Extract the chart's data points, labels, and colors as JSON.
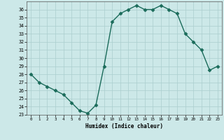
{
  "x": [
    0,
    1,
    2,
    3,
    4,
    5,
    6,
    7,
    8,
    9,
    10,
    11,
    12,
    13,
    14,
    15,
    16,
    17,
    18,
    19,
    20,
    21,
    22,
    23
  ],
  "y": [
    28,
    27,
    26.5,
    26,
    25.5,
    24.5,
    23.5,
    23.2,
    24.2,
    29,
    34.5,
    35.5,
    36,
    36.5,
    36,
    36,
    36.5,
    36,
    35.5,
    33,
    32,
    31,
    28.5,
    29
  ],
  "xlabel": "Humidex (Indice chaleur)",
  "ylim": [
    23,
    37
  ],
  "xlim": [
    -0.5,
    23.5
  ],
  "yticks": [
    23,
    24,
    25,
    26,
    27,
    28,
    29,
    30,
    31,
    32,
    33,
    34,
    35,
    36
  ],
  "xticks": [
    0,
    1,
    2,
    3,
    4,
    5,
    6,
    7,
    8,
    9,
    10,
    11,
    12,
    13,
    14,
    15,
    16,
    17,
    18,
    19,
    20,
    21,
    22,
    23
  ],
  "line_color": "#1a6b5a",
  "bg_color": "#cce8e8",
  "grid_color": "#aacece",
  "marker_size": 2.5,
  "line_width": 1.0
}
